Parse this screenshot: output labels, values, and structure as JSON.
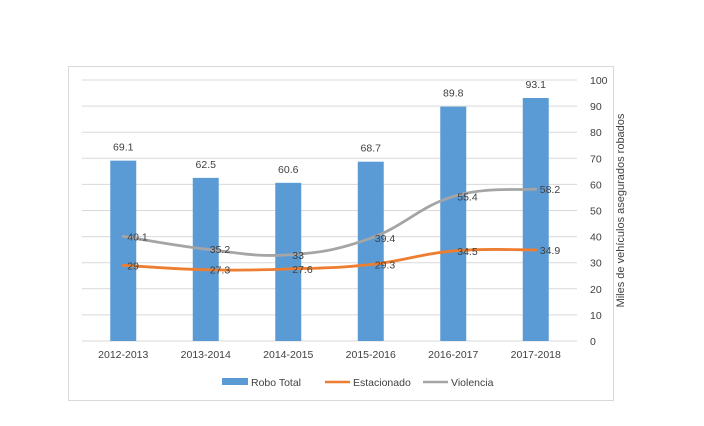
{
  "chart_data": {
    "type": "bar",
    "title": "",
    "categories": [
      "2012-2013",
      "2013-2014",
      "2014-2015",
      "2015-2016",
      "2016-2017",
      "2017-2018"
    ],
    "series": [
      {
        "name": "Robo Total",
        "type": "bar",
        "color": "#5b9bd5",
        "values": [
          69.1,
          62.5,
          60.6,
          68.7,
          89.8,
          93.1
        ],
        "labels": [
          "69.1",
          "62.5",
          "60.6",
          "68.7",
          "89.8",
          "93.1"
        ]
      },
      {
        "name": "Estacionado",
        "type": "line",
        "color": "#ed7d31",
        "values": [
          29,
          27.3,
          27.6,
          29.3,
          34.5,
          34.9
        ],
        "labels": [
          "29",
          "27.3",
          "27.6",
          "29.3",
          "34.5",
          "34.9"
        ]
      },
      {
        "name": "Violencia",
        "type": "line",
        "color": "#a5a5a5",
        "values": [
          40.1,
          35.2,
          33,
          39.4,
          55.4,
          58.2
        ],
        "labels": [
          "40.1",
          "35.2",
          "33",
          "39.4",
          "55.4",
          "58.2"
        ]
      }
    ],
    "ylabel": "Miles de vehículos asegurados robados",
    "y_axis_side": "right",
    "ylim": [
      0,
      100
    ],
    "yticks": [
      "0",
      "10",
      "20",
      "30",
      "40",
      "50",
      "60",
      "70",
      "80",
      "90",
      "100"
    ],
    "grid": true,
    "legend": "bottom"
  }
}
